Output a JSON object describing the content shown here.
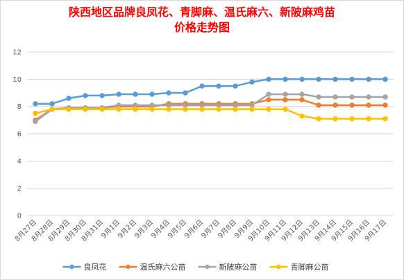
{
  "chart_data": {
    "type": "line",
    "title_lines": [
      "陕西地区品牌良凤花、青脚麻、温氏麻六、新陂麻鸡苗",
      "价格走势图"
    ],
    "categories": [
      "8月27日",
      "8月28日",
      "8月29日",
      "8月30日",
      "8月31日",
      "9月1日",
      "9月2日",
      "9月3日",
      "9月4日",
      "9月5日",
      "9月6日",
      "9月7日",
      "9月8日",
      "9月9日",
      "9月10日",
      "9月11日",
      "9月12日",
      "9月13日",
      "9月14日",
      "9月15日",
      "9月16日",
      "9月17日"
    ],
    "ylim": [
      0,
      12
    ],
    "yticks": [
      "0",
      "2",
      "4",
      "6",
      "8",
      "10",
      "12"
    ],
    "grid": true,
    "legend_position": "bottom",
    "series": [
      {
        "name": "良凤花",
        "color": "#5b9bd5",
        "values": [
          8.2,
          8.2,
          8.6,
          8.8,
          8.8,
          8.9,
          8.9,
          8.9,
          9.0,
          9.0,
          9.5,
          9.5,
          9.5,
          9.8,
          10.0,
          10.0,
          10.0,
          10.0,
          10.0,
          10.0,
          10.0,
          10.0
        ]
      },
      {
        "name": "温氏麻六公苗",
        "color": "#ed7d31",
        "values": [
          7.0,
          7.8,
          7.9,
          7.9,
          7.9,
          8.0,
          8.0,
          8.0,
          8.2,
          8.2,
          8.2,
          8.2,
          8.2,
          8.2,
          8.5,
          8.5,
          8.5,
          8.1,
          8.1,
          8.1,
          8.1,
          8.1
        ]
      },
      {
        "name": "新陂麻公苗",
        "color": "#a5a5a5",
        "values": [
          6.9,
          7.8,
          7.9,
          7.9,
          7.9,
          8.1,
          8.1,
          8.1,
          8.1,
          8.1,
          8.1,
          8.1,
          8.1,
          8.1,
          8.9,
          8.9,
          8.9,
          8.7,
          8.7,
          8.7,
          8.7,
          8.7
        ]
      },
      {
        "name": "青脚麻公苗",
        "color": "#ffc000",
        "values": [
          7.5,
          7.8,
          7.8,
          7.8,
          7.8,
          7.8,
          7.8,
          7.8,
          7.8,
          7.8,
          7.8,
          7.8,
          7.8,
          7.8,
          7.8,
          7.8,
          7.3,
          7.1,
          7.1,
          7.1,
          7.1,
          7.1
        ]
      }
    ]
  }
}
